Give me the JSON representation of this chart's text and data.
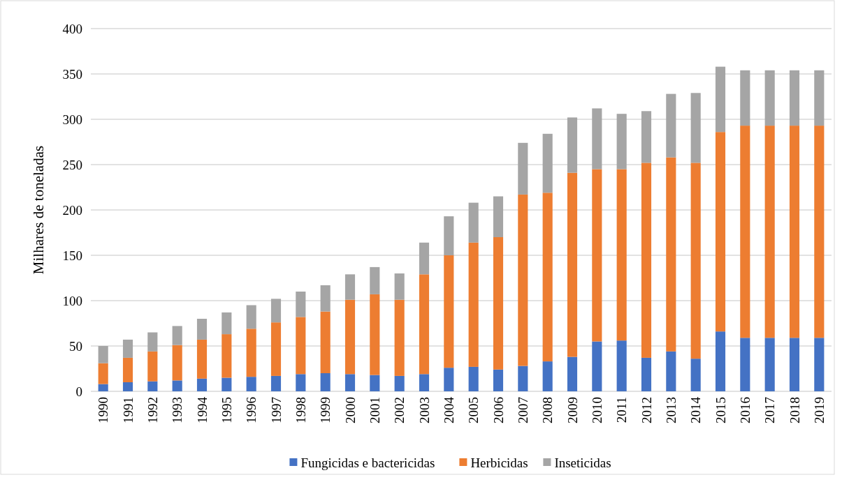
{
  "chart_data": {
    "type": "bar",
    "stacked": true,
    "ylabel": "Milhares de toneladas",
    "categories": [
      "1990",
      "1991",
      "1992",
      "1993",
      "1994",
      "1995",
      "1996",
      "1997",
      "1998",
      "1999",
      "2000",
      "2001",
      "2002",
      "2003",
      "2004",
      "2005",
      "2006",
      "2007",
      "2008",
      "2009",
      "2010",
      "2011",
      "2012",
      "2013",
      "2014",
      "2015",
      "2016",
      "2017",
      "2018",
      "2019"
    ],
    "series": [
      {
        "name": "Fungicidas e bactericidas",
        "color": "#4472c4",
        "values": [
          8,
          10,
          11,
          12,
          14,
          15,
          16,
          17,
          19,
          20,
          19,
          18,
          17,
          19,
          26,
          27,
          24,
          28,
          33,
          38,
          55,
          56,
          37,
          44,
          36,
          66,
          59,
          59,
          59,
          59
        ]
      },
      {
        "name": "Herbicidas",
        "color": "#ed7d31",
        "values": [
          23,
          27,
          33,
          39,
          43,
          48,
          53,
          59,
          63,
          68,
          82,
          89,
          84,
          110,
          124,
          137,
          146,
          189,
          186,
          203,
          190,
          189,
          215,
          214,
          216,
          220,
          234,
          234,
          234,
          234
        ]
      },
      {
        "name": "Inseticidas",
        "color": "#a5a5a5",
        "values": [
          19,
          20,
          21,
          21,
          23,
          24,
          26,
          26,
          28,
          29,
          28,
          30,
          29,
          35,
          43,
          44,
          45,
          57,
          65,
          61,
          67,
          61,
          57,
          70,
          77,
          72,
          61,
          61,
          61,
          61
        ]
      }
    ],
    "ylim": [
      0,
      400
    ],
    "yticks": [
      0,
      50,
      100,
      150,
      200,
      250,
      300,
      350,
      400
    ],
    "grid": "y",
    "legend": "bottom"
  }
}
